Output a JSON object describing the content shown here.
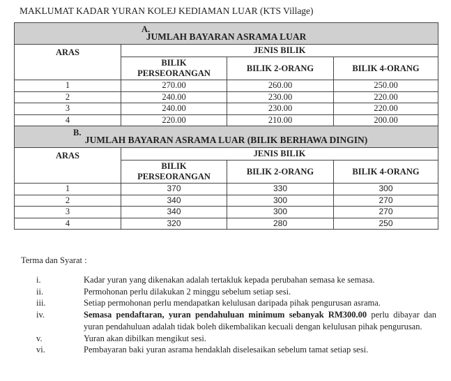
{
  "title": "MAKLUMAT KADAR YURAN KOLEJ KEDIAMAN LUAR (KTS Village)",
  "table_a": {
    "letter": "A.",
    "heading": "JUMLAH BAYARAN ASRAMA LUAR",
    "aras": "ARAS",
    "jenis": "JENIS BILIK",
    "cols": [
      "BILIK PERSEORANGAN",
      "BILIK 2-ORANG",
      "BILIK 4-ORANG"
    ],
    "rows": [
      [
        "1",
        "270.00",
        "260.00",
        "250.00"
      ],
      [
        "2",
        "240.00",
        "230.00",
        "220.00"
      ],
      [
        "3",
        "240.00",
        "230.00",
        "220.00"
      ],
      [
        "4",
        "220.00",
        "210.00",
        "200.00"
      ]
    ]
  },
  "table_b": {
    "letter": "B.",
    "heading": "JUMLAH BAYARAN ASRAMA LUAR (BILIK BERHAWA DINGIN)",
    "aras": "ARAS",
    "jenis": "JENIS BILIK",
    "cols": [
      "BILIK PERSEORANGAN",
      "BILIK 2-ORANG",
      "BILIK 4-ORANG"
    ],
    "rows": [
      [
        "1",
        "370",
        "330",
        "300"
      ],
      [
        "2",
        "340",
        "300",
        "270"
      ],
      [
        "3",
        "340",
        "300",
        "270"
      ],
      [
        "4",
        "320",
        "280",
        "250"
      ]
    ]
  },
  "terms": {
    "heading": "Terma dan Syarat :",
    "items": [
      {
        "num": "i.",
        "text": "Kadar yuran yang dikenakan adalah tertakluk kepada perubahan semasa ke semasa."
      },
      {
        "num": "ii.",
        "text": "Permohonan perlu dilakukan 2 minggu sebelum setiap sesi."
      },
      {
        "num": "iii.",
        "text": "Setiap permohonan perlu mendapatkan kelulusan daripada pihak pengurusan asrama."
      },
      {
        "num": "iv.",
        "bold": "Semasa pendaftaran, yuran pendahuluan minimum sebanyak RM300.00",
        "text": " perlu dibayar dan yuran pendahuluan adalah tidak boleh dikembalikan kecuali dengan kelulusan pihak pengurusan."
      },
      {
        "num": "v.",
        "text": "Yuran akan dibilkan mengikut sesi."
      },
      {
        "num": "vi.",
        "text": "Pembayaran baki yuran asrama hendaklah diselesaikan sebelum tamat setiap sesi."
      }
    ]
  }
}
